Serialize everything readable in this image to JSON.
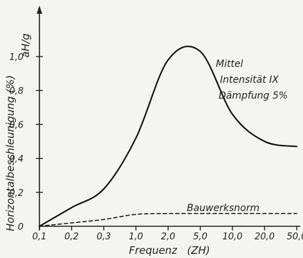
{
  "chart_data": {
    "type": "line",
    "xlabel": "Frequenz   (ZH)",
    "ylabel": "Horizontalbeschleunigung   (%)",
    "ylabel_unit": "aH/g",
    "x_ticks": [
      "0,1",
      "0,2",
      "0,3",
      "1,0",
      "2,0",
      "5,0",
      "10,0",
      "20,0",
      "50,0"
    ],
    "y_ticks": [
      "0",
      "0,2",
      "0,4",
      "0,6",
      "0,8",
      "1,0"
    ],
    "ylim": [
      0,
      1.1
    ],
    "annotations": [
      "Mittel",
      "Intensität IX",
      "Dämpfung 5%"
    ],
    "series": [
      {
        "name": "",
        "style": "solid",
        "x": [
          "0,1",
          "0,2",
          "0,3",
          "1,0",
          "2,0",
          "5,0",
          "10,0",
          "20,0",
          "50,0"
        ],
        "values": [
          0.0,
          0.11,
          0.22,
          0.52,
          0.98,
          1.03,
          0.66,
          0.5,
          0.47
        ]
      },
      {
        "name": "Bauwerksnorm",
        "style": "dashed",
        "x": [
          "0,1",
          "0,2",
          "0,3",
          "1,0",
          "2,0",
          "5,0",
          "10,0",
          "20,0",
          "50,0"
        ],
        "values": [
          0.0,
          0.02,
          0.04,
          0.07,
          0.075,
          0.075,
          0.075,
          0.075,
          0.075
        ]
      }
    ]
  }
}
